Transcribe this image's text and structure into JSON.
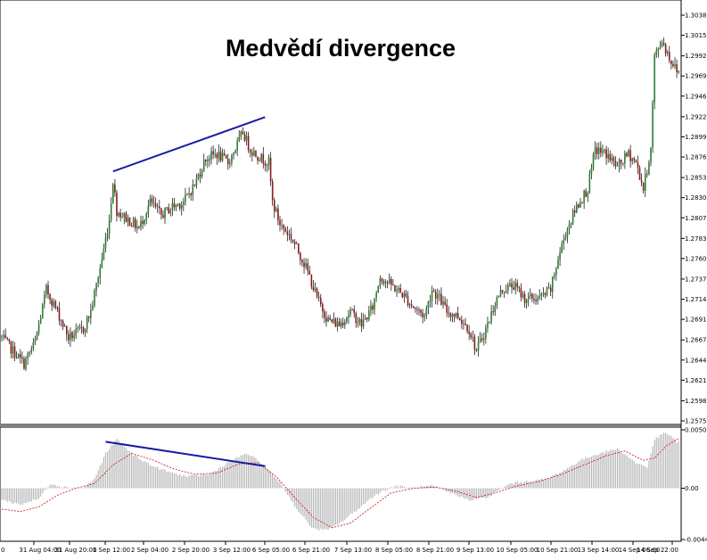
{
  "colors": {
    "background": "#ffffff",
    "bull_candle": "#2e7d32",
    "bear_candle": "#8b1a1a",
    "wick": "#000000",
    "histogram": "#b8b8b8",
    "signal_line": "#d01010",
    "divergence_line": "#1a1aa0",
    "separator": "#808080"
  },
  "chart_data": [
    {
      "type": "candlestick",
      "title": "Medvědí divergence",
      "yticks": [
        "1.30385",
        "1.30155",
        "1.29920",
        "1.29690",
        "1.29460",
        "1.29225",
        "1.28995",
        "1.28765",
        "1.28530",
        "1.28300",
        "1.28070",
        "1.27835",
        "1.27605",
        "1.27370",
        "1.27140",
        "1.26910",
        "1.26675",
        "1.26445",
        "1.26215",
        "1.25980",
        "1.25750"
      ],
      "ylim": [
        1.2575,
        1.30385
      ],
      "xticks": [
        "0",
        "31 Aug 04:00",
        "31 Aug 20:00",
        "1 Sep 12:00",
        "2 Sep 04:00",
        "2 Sep 20:00",
        "3 Sep 12:00",
        "6 Sep 05:00",
        "6 Sep 21:00",
        "7 Sep 13:00",
        "8 Sep 05:00",
        "8 Sep 21:00",
        "9 Sep 13:00",
        "10 Sep 05:00",
        "10 Sep 21:00",
        "13 Sep 14:00",
        "14 Sep 06:00",
        "14 Sep 22:00"
      ],
      "anchors": [
        [
          0,
          1.267
        ],
        [
          6,
          1.2655
        ],
        [
          12,
          1.264
        ],
        [
          18,
          1.2665
        ],
        [
          24,
          1.2725
        ],
        [
          30,
          1.27
        ],
        [
          36,
          1.267
        ],
        [
          44,
          1.268
        ],
        [
          48,
          1.27
        ],
        [
          54,
          1.276
        ],
        [
          58,
          1.2805
        ],
        [
          60,
          1.285
        ],
        [
          62,
          1.2815
        ],
        [
          68,
          1.2805
        ],
        [
          74,
          1.2795
        ],
        [
          80,
          1.2825
        ],
        [
          86,
          1.281
        ],
        [
          92,
          1.282
        ],
        [
          98,
          1.2825
        ],
        [
          104,
          1.2845
        ],
        [
          110,
          1.2875
        ],
        [
          116,
          1.288
        ],
        [
          122,
          1.287
        ],
        [
          128,
          1.2895
        ],
        [
          130,
          1.2905
        ],
        [
          134,
          1.2885
        ],
        [
          140,
          1.2875
        ],
        [
          144,
          1.287
        ],
        [
          146,
          1.2825
        ],
        [
          150,
          1.28
        ],
        [
          156,
          1.2785
        ],
        [
          162,
          1.276
        ],
        [
          166,
          1.274
        ],
        [
          170,
          1.2715
        ],
        [
          176,
          1.269
        ],
        [
          182,
          1.2685
        ],
        [
          188,
          1.27
        ],
        [
          194,
          1.2685
        ],
        [
          200,
          1.2705
        ],
        [
          204,
          1.274
        ],
        [
          210,
          1.273
        ],
        [
          216,
          1.272
        ],
        [
          222,
          1.2705
        ],
        [
          228,
          1.2695
        ],
        [
          232,
          1.2725
        ],
        [
          236,
          1.2715
        ],
        [
          240,
          1.27
        ],
        [
          246,
          1.2695
        ],
        [
          252,
          1.268
        ],
        [
          256,
          1.2655
        ],
        [
          262,
          1.2685
        ],
        [
          266,
          1.271
        ],
        [
          270,
          1.2725
        ],
        [
          276,
          1.273
        ],
        [
          282,
          1.2715
        ],
        [
          290,
          1.2715
        ],
        [
          296,
          1.2725
        ],
        [
          300,
          1.276
        ],
        [
          304,
          1.279
        ],
        [
          310,
          1.282
        ],
        [
          316,
          1.284
        ],
        [
          320,
          1.2885
        ],
        [
          326,
          1.288
        ],
        [
          332,
          1.2865
        ],
        [
          338,
          1.288
        ],
        [
          342,
          1.287
        ],
        [
          346,
          1.284
        ],
        [
          350,
          1.2885
        ],
        [
          352,
          1.299
        ],
        [
          356,
          1.301
        ],
        [
          360,
          1.299
        ],
        [
          364,
          1.2975
        ]
      ]
    },
    {
      "type": "histogram",
      "yticks": [
        "0.005026",
        "0.00",
        "-0.00441"
      ],
      "ylim": [
        -0.00441,
        0.005026
      ],
      "hist_anchors": [
        [
          0,
          -0.001
        ],
        [
          10,
          -0.0014
        ],
        [
          20,
          -0.0009
        ],
        [
          26,
          0.0004
        ],
        [
          34,
          0.0001
        ],
        [
          44,
          0.0
        ],
        [
          50,
          0.0008
        ],
        [
          56,
          0.003
        ],
        [
          62,
          0.0042
        ],
        [
          70,
          0.003
        ],
        [
          80,
          0.002
        ],
        [
          90,
          0.0014
        ],
        [
          100,
          0.001
        ],
        [
          112,
          0.0012
        ],
        [
          122,
          0.0022
        ],
        [
          132,
          0.003
        ],
        [
          140,
          0.0022
        ],
        [
          150,
          0.0005
        ],
        [
          160,
          -0.002
        ],
        [
          168,
          -0.0035
        ],
        [
          176,
          -0.0036
        ],
        [
          184,
          -0.0028
        ],
        [
          192,
          -0.0018
        ],
        [
          202,
          -0.0005
        ],
        [
          212,
          0.0002
        ],
        [
          222,
          0.0
        ],
        [
          232,
          0.0002
        ],
        [
          242,
          -0.0004
        ],
        [
          252,
          -0.001
        ],
        [
          262,
          -0.0008
        ],
        [
          274,
          0.0004
        ],
        [
          284,
          0.0006
        ],
        [
          294,
          0.0008
        ],
        [
          304,
          0.0016
        ],
        [
          312,
          0.0024
        ],
        [
          322,
          0.003
        ],
        [
          332,
          0.0034
        ],
        [
          342,
          0.0022
        ],
        [
          348,
          0.0018
        ],
        [
          352,
          0.0042
        ],
        [
          358,
          0.0048
        ],
        [
          364,
          0.004
        ]
      ],
      "signal_anchors": [
        [
          0,
          -0.0018
        ],
        [
          10,
          -0.002
        ],
        [
          20,
          -0.0016
        ],
        [
          30,
          -0.0006
        ],
        [
          40,
          0.0
        ],
        [
          50,
          0.0004
        ],
        [
          60,
          0.002
        ],
        [
          70,
          0.003
        ],
        [
          82,
          0.0024
        ],
        [
          92,
          0.0017
        ],
        [
          104,
          0.0012
        ],
        [
          116,
          0.0013
        ],
        [
          128,
          0.0021
        ],
        [
          138,
          0.0022
        ],
        [
          148,
          0.001
        ],
        [
          158,
          -0.0008
        ],
        [
          168,
          -0.0025
        ],
        [
          178,
          -0.0034
        ],
        [
          188,
          -0.003
        ],
        [
          198,
          -0.0018
        ],
        [
          210,
          -0.0004
        ],
        [
          222,
          0.0
        ],
        [
          234,
          0.0001
        ],
        [
          246,
          -0.0003
        ],
        [
          256,
          -0.0008
        ],
        [
          266,
          -0.0004
        ],
        [
          278,
          0.0002
        ],
        [
          290,
          0.0006
        ],
        [
          302,
          0.0012
        ],
        [
          314,
          0.002
        ],
        [
          326,
          0.0028
        ],
        [
          336,
          0.0032
        ],
        [
          346,
          0.0024
        ],
        [
          352,
          0.0026
        ],
        [
          358,
          0.0036
        ],
        [
          364,
          0.0042
        ]
      ]
    }
  ],
  "divergence_lines": {
    "price": {
      "start": [
        60,
        1.286
      ],
      "end": [
        142,
        1.2922
      ]
    },
    "oscillator": {
      "start": [
        56,
        0.004
      ],
      "end": [
        142,
        0.0019
      ]
    }
  }
}
